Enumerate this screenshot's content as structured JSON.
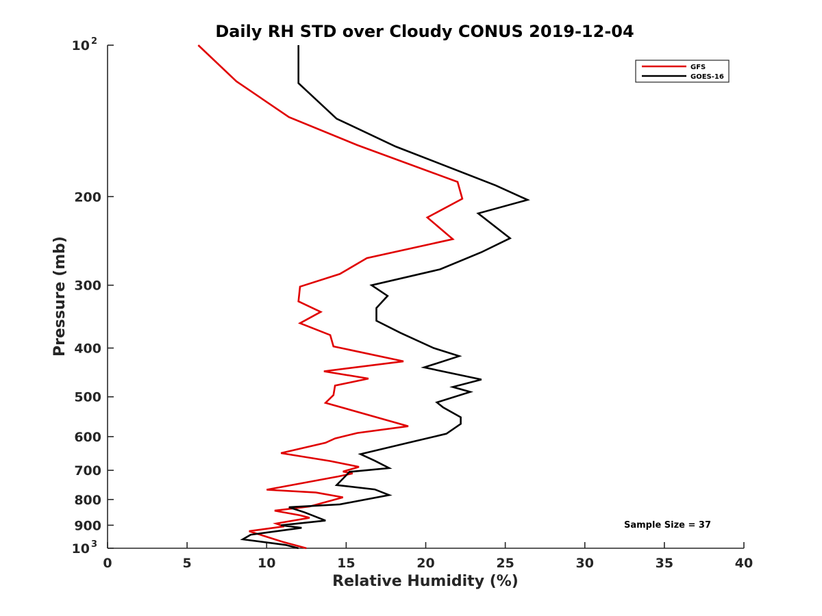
{
  "chart_data": {
    "type": "line",
    "title": "Daily RH STD over Cloudy CONUS 2019-12-04",
    "xlabel": "Relative Humidity (%)",
    "ylabel": "Pressure (mb)",
    "xlim": [
      0,
      40
    ],
    "ylim": [
      100,
      1000
    ],
    "y_scale": "log",
    "y_reversed": true,
    "grid": false,
    "legend_position": "top-right",
    "x_ticks": [
      0,
      5,
      10,
      15,
      20,
      25,
      30,
      35,
      40
    ],
    "x_tick_labels": [
      "0",
      "5",
      "10",
      "15",
      "20",
      "25",
      "30",
      "35",
      "40"
    ],
    "y_ticks": [
      {
        "value": 100,
        "base": "10",
        "exp": "2"
      },
      {
        "value": 200,
        "label": "200"
      },
      {
        "value": 300,
        "label": "300"
      },
      {
        "value": 400,
        "label": "400"
      },
      {
        "value": 500,
        "label": "500"
      },
      {
        "value": 600,
        "label": "600"
      },
      {
        "value": 700,
        "label": "700"
      },
      {
        "value": 800,
        "label": "800"
      },
      {
        "value": 900,
        "label": "900"
      },
      {
        "value": 1000,
        "base": "10",
        "exp": "3"
      }
    ],
    "annotation": "Sample Size = 37",
    "series": [
      {
        "name": "GFS",
        "color": "#e00000",
        "points": [
          [
            5.7,
            100
          ],
          [
            8.1,
            118
          ],
          [
            11.4,
            139
          ],
          [
            15.7,
            158
          ],
          [
            22.0,
            187
          ],
          [
            22.3,
            202
          ],
          [
            20.1,
            220
          ],
          [
            21.7,
            243
          ],
          [
            16.3,
            265
          ],
          [
            14.6,
            285
          ],
          [
            12.1,
            302
          ],
          [
            12.0,
            323
          ],
          [
            13.4,
            339
          ],
          [
            12.1,
            357
          ],
          [
            14.0,
            377
          ],
          [
            14.2,
            397
          ],
          [
            18.6,
            425
          ],
          [
            13.6,
            445
          ],
          [
            16.4,
            460
          ],
          [
            14.3,
            475
          ],
          [
            14.2,
            496
          ],
          [
            13.7,
            514
          ],
          [
            18.9,
            572
          ],
          [
            15.7,
            590
          ],
          [
            14.3,
            605
          ],
          [
            13.7,
            617
          ],
          [
            10.9,
            647
          ],
          [
            14.0,
            671
          ],
          [
            15.8,
            689
          ],
          [
            14.8,
            704
          ],
          [
            15.4,
            710
          ],
          [
            14.5,
            720
          ],
          [
            10.0,
            765
          ],
          [
            13.1,
            775
          ],
          [
            14.8,
            792
          ],
          [
            12.7,
            826
          ],
          [
            10.5,
            842
          ],
          [
            12.1,
            860
          ],
          [
            12.7,
            870
          ],
          [
            10.6,
            893
          ],
          [
            11.1,
            905
          ],
          [
            8.9,
            925
          ],
          [
            11.0,
            971
          ],
          [
            12.5,
            1000
          ]
        ]
      },
      {
        "name": "GOES-16",
        "color": "#000000",
        "points": [
          [
            12.0,
            100
          ],
          [
            12.0,
            119
          ],
          [
            14.4,
            140
          ],
          [
            18.1,
            159
          ],
          [
            24.4,
            190
          ],
          [
            26.4,
            203
          ],
          [
            23.3,
            216
          ],
          [
            25.3,
            242
          ],
          [
            23.5,
            258
          ],
          [
            20.9,
            279
          ],
          [
            16.6,
            300
          ],
          [
            17.6,
            315
          ],
          [
            16.9,
            333
          ],
          [
            16.9,
            353
          ],
          [
            18.4,
            373
          ],
          [
            20.5,
            400
          ],
          [
            22.1,
            415
          ],
          [
            19.9,
            437
          ],
          [
            23.5,
            462
          ],
          [
            21.7,
            478
          ],
          [
            22.8,
            489
          ],
          [
            20.7,
            513
          ],
          [
            21.1,
            525
          ],
          [
            22.2,
            549
          ],
          [
            22.2,
            566
          ],
          [
            21.3,
            592
          ],
          [
            18.9,
            617
          ],
          [
            15.9,
            650
          ],
          [
            16.8,
            670
          ],
          [
            17.7,
            693
          ],
          [
            15.2,
            705
          ],
          [
            15.1,
            711
          ],
          [
            14.4,
            749
          ],
          [
            16.8,
            764
          ],
          [
            17.7,
            784
          ],
          [
            14.6,
            818
          ],
          [
            11.4,
            829
          ],
          [
            12.4,
            849
          ],
          [
            13.7,
            881
          ],
          [
            10.9,
            900
          ],
          [
            12.2,
            911
          ],
          [
            9.0,
            940
          ],
          [
            8.5,
            960
          ],
          [
            11.2,
            985
          ],
          [
            12.0,
            1000
          ]
        ]
      }
    ]
  }
}
